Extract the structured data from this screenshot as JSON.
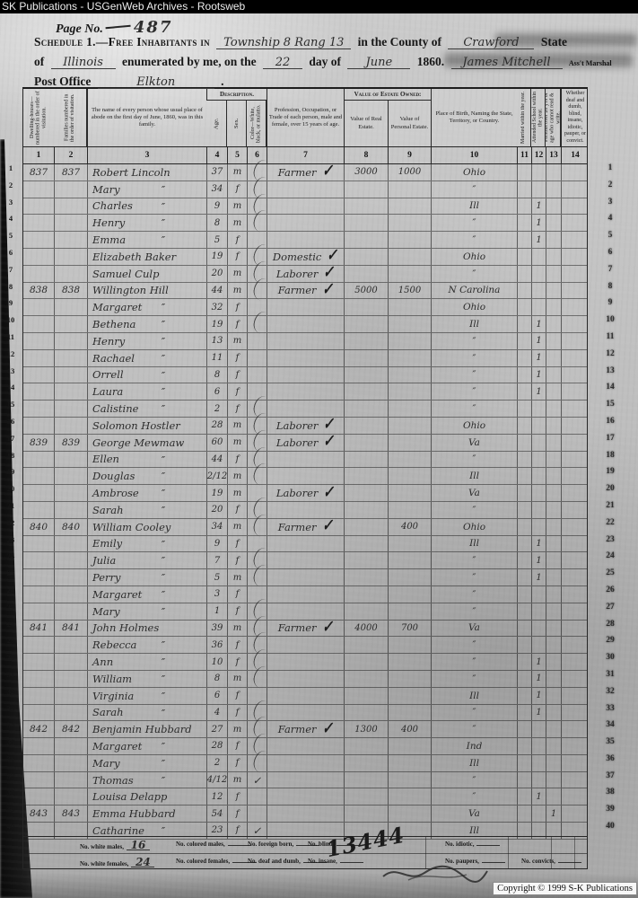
{
  "browser_bar": {
    "title": "SK Publications - USGenWeb Archives - Rootsweb"
  },
  "page_header": {
    "page_no_label": "Page No.",
    "page_no": "487",
    "schedule_label": "Schedule 1.—Free Inhabitants in",
    "township": "Township 8 Rang 13",
    "county_label": "in the County of",
    "county": "Crawford",
    "state_label": "State",
    "of_label": "of",
    "state": "Illinois",
    "enumerated_label": "enumerated by me, on the",
    "day": "22",
    "day_of_label": "day of",
    "month": "June",
    "year": "1860.",
    "marshal": "James Mitchell",
    "marshal_title": "Ass't Marshal",
    "post_office_label": "Post Office",
    "post_office": "Elkton",
    "period": "."
  },
  "table": {
    "group_headers": {
      "description": "Description.",
      "value_of_estate": "Value of Estate Owned:"
    },
    "columns": [
      {
        "num": "1",
        "label": "Dwelling-houses—numbered in the order of visitation."
      },
      {
        "num": "2",
        "label": "Families numbered in the order of visitation."
      },
      {
        "num": "3",
        "label": "The name of every person whose usual place of abode on the first day of June, 1860, was in this family."
      },
      {
        "num": "4",
        "label": "Age."
      },
      {
        "num": "5",
        "label": "Sex."
      },
      {
        "num": "6",
        "label": "Color—White, black, or mulatto."
      },
      {
        "num": "7",
        "label": "Profession, Occupation, or Trade of each person, male and female, over 15 years of age."
      },
      {
        "num": "8",
        "label": "Value of Real Estate."
      },
      {
        "num": "9",
        "label": "Value of Personal Estate."
      },
      {
        "num": "10",
        "label": "Place of Birth, Naming the State, Territory, or Country."
      },
      {
        "num": "11",
        "label": "Married within the year."
      },
      {
        "num": "12",
        "label": "Attended School within the year."
      },
      {
        "num": "13",
        "label": "Persons over 20 y'rs of age who cannot read & write."
      },
      {
        "num": "14",
        "label": "Whether deaf and dumb, blind, insane, idiotic, pauper, or convict."
      }
    ],
    "ditto": "″",
    "check": "✓",
    "rows": [
      {
        "d": "837",
        "f": "837",
        "name": "Robert Lincoln",
        "age": "37",
        "sex": "m",
        "occ": "Farmer",
        "chk": 1,
        "fl": 1,
        "re": "3000",
        "pe": "1000",
        "b": "Ohio"
      },
      {
        "name": "Mary",
        "dit": 1,
        "age": "34",
        "sex": "f",
        "fl": 1,
        "b": "″"
      },
      {
        "name": "Charles",
        "dit": 1,
        "age": "9",
        "sex": "m",
        "fl": 1,
        "b": "Ill",
        "s12": "1"
      },
      {
        "name": "Henry",
        "dit": 1,
        "age": "8",
        "sex": "m",
        "fl": 1,
        "b": "″",
        "s12": "1"
      },
      {
        "name": "Emma",
        "dit": 1,
        "age": "5",
        "sex": "f",
        "b": "″",
        "s12": "1"
      },
      {
        "name": "Elizabeth Baker",
        "age": "19",
        "sex": "f",
        "occ": "Domestic",
        "chk": 1,
        "fl": 1,
        "b": "Ohio"
      },
      {
        "name": "Samuel Culp",
        "age": "20",
        "sex": "m",
        "occ": "Laborer",
        "chk": 1,
        "fl": 1,
        "b": "″"
      },
      {
        "d": "838",
        "f": "838",
        "name": "Willington Hill",
        "age": "44",
        "sex": "m",
        "occ": "Farmer",
        "chk": 1,
        "fl": 1,
        "re": "5000",
        "pe": "1500",
        "b": "N Carolina"
      },
      {
        "name": "Margaret",
        "dit": 1,
        "age": "32",
        "sex": "f",
        "b": "Ohio"
      },
      {
        "name": "Bethena",
        "dit": 1,
        "age": "19",
        "sex": "f",
        "fl": 1,
        "b": "Ill",
        "s12": "1"
      },
      {
        "name": "Henry",
        "dit": 1,
        "age": "13",
        "sex": "m",
        "b": "″",
        "s12": "1"
      },
      {
        "name": "Rachael",
        "dit": 1,
        "age": "11",
        "sex": "f",
        "b": "″",
        "s12": "1"
      },
      {
        "name": "Orrell",
        "dit": 1,
        "age": "8",
        "sex": "f",
        "b": "″",
        "s12": "1"
      },
      {
        "name": "Laura",
        "dit": 1,
        "age": "6",
        "sex": "f",
        "b": "″",
        "s12": "1"
      },
      {
        "name": "Calistine",
        "dit": 1,
        "age": "2",
        "sex": "f",
        "fl": 1,
        "b": "″"
      },
      {
        "name": "Solomon Hostler",
        "age": "28",
        "sex": "m",
        "occ": "Laborer",
        "chk": 1,
        "fl": 1,
        "b": "Ohio"
      },
      {
        "d": "839",
        "f": "839",
        "name": "George Mewmaw",
        "age": "60",
        "sex": "m",
        "occ": "Laborer",
        "chk": 1,
        "fl": 1,
        "b": "Va"
      },
      {
        "name": "Ellen",
        "dit": 1,
        "age": "44",
        "sex": "f",
        "fl": 1,
        "b": "″"
      },
      {
        "name": "Douglas",
        "dit": 1,
        "age": "2/12",
        "sex": "m",
        "fl": 1,
        "b": "Ill"
      },
      {
        "name": "Ambrose",
        "dit": 1,
        "age": "19",
        "sex": "m",
        "occ": "Laborer",
        "chk": 1,
        "b": "Va"
      },
      {
        "name": "Sarah",
        "dit": 1,
        "age": "20",
        "sex": "f",
        "fl": 1,
        "b": "″"
      },
      {
        "d": "840",
        "f": "840",
        "name": "William Cooley",
        "age": "34",
        "sex": "m",
        "occ": "Farmer",
        "chk": 1,
        "fl": 1,
        "pe": "400",
        "b": "Ohio"
      },
      {
        "name": "Emily",
        "dit": 1,
        "age": "9",
        "sex": "f",
        "b": "Ill",
        "s12": "1"
      },
      {
        "name": "Julia",
        "dit": 1,
        "age": "7",
        "sex": "f",
        "fl": 1,
        "b": "″",
        "s12": "1"
      },
      {
        "name": "Perry",
        "dit": 1,
        "age": "5",
        "sex": "m",
        "fl": 1,
        "b": "″",
        "s12": "1"
      },
      {
        "name": "Margaret",
        "dit": 1,
        "age": "3",
        "sex": "f",
        "b": "″"
      },
      {
        "name": "Mary",
        "dit": 1,
        "age": "1",
        "sex": "f",
        "fl": 1,
        "b": "″"
      },
      {
        "d": "841",
        "f": "841",
        "name": "John Holmes",
        "age": "39",
        "sex": "m",
        "occ": "Farmer",
        "chk": 1,
        "fl": 1,
        "re": "4000",
        "pe": "700",
        "b": "Va"
      },
      {
        "name": "Rebecca",
        "dit": 1,
        "age": "36",
        "sex": "f",
        "fl": 1,
        "b": "″"
      },
      {
        "name": "Ann",
        "dit": 1,
        "age": "10",
        "sex": "f",
        "fl": 1,
        "b": "″",
        "s12": "1"
      },
      {
        "name": "William",
        "dit": 1,
        "age": "8",
        "sex": "m",
        "fl": 1,
        "b": "″",
        "s12": "1"
      },
      {
        "name": "Virginia",
        "dit": 1,
        "age": "6",
        "sex": "f",
        "b": "Ill",
        "s12": "1"
      },
      {
        "name": "Sarah",
        "dit": 1,
        "age": "4",
        "sex": "f",
        "fl": 1,
        "b": "″",
        "s12": "1"
      },
      {
        "d": "842",
        "f": "842",
        "name": "Benjamin Hubbard",
        "age": "27",
        "sex": "m",
        "occ": "Farmer",
        "chk": 1,
        "fl": 1,
        "re": "1300",
        "pe": "400",
        "b": "″"
      },
      {
        "name": "Margaret",
        "dit": 1,
        "age": "28",
        "sex": "f",
        "fl": 1,
        "b": "Ind"
      },
      {
        "name": "Mary",
        "dit": 1,
        "age": "2",
        "sex": "f",
        "fl": 1,
        "b": "Ill"
      },
      {
        "name": "Thomas",
        "dit": 1,
        "age": "4/12",
        "sex": "m",
        "c6": "✓",
        "b": "″"
      },
      {
        "name": "Louisa Delapp",
        "age": "12",
        "sex": "f",
        "b": "″",
        "s12": "1"
      },
      {
        "d": "843",
        "f": "843",
        "name": "Emma Hubbard",
        "age": "54",
        "sex": "f",
        "b": "Va",
        "s13": "1"
      },
      {
        "name": "Catharine",
        "dit": 1,
        "age": "23",
        "sex": "f",
        "c6": "✓",
        "b": "Ill"
      }
    ]
  },
  "footer": {
    "line1": [
      {
        "label": "No. white males,",
        "value": "16"
      },
      {
        "label": "No. colored males,"
      },
      {
        "label": "No. foreign born,"
      },
      {
        "label": "No. blind,"
      },
      {
        "label": "No. idiotic,"
      }
    ],
    "line2": [
      {
        "label": "No. white females,",
        "value": "24"
      },
      {
        "label": "No. colored females,"
      },
      {
        "label": "No. deaf and dumb,"
      },
      {
        "label": "No. insane,"
      },
      {
        "label": "No. paupers,"
      },
      {
        "label": "No. convicts,"
      }
    ],
    "scrawl": "13444"
  },
  "copyright": "Copyright © 1999 S-K Publications"
}
